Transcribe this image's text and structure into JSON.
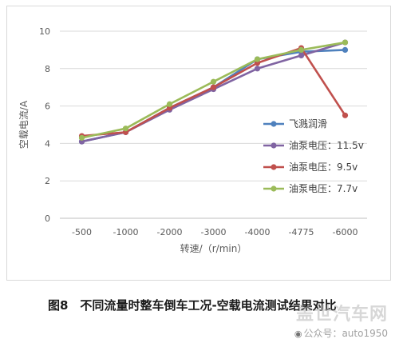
{
  "chart_data": {
    "type": "line",
    "title": "",
    "xlabel": "转速/（r/min）",
    "ylabel": "空载电流/A",
    "categories": [
      "-500",
      "-1000",
      "-2000",
      "-3000",
      "-4000",
      "-4775",
      "-6000"
    ],
    "ylim": [
      0,
      10
    ],
    "yticks": [
      "0",
      "2",
      "4",
      "6",
      "8",
      "10"
    ],
    "grid": "horizontal",
    "legend_position": "right",
    "series": [
      {
        "name": "飞溅润滑",
        "color": "#4f81bd",
        "values": [
          4.1,
          4.6,
          5.9,
          7.0,
          8.5,
          8.9,
          9.0
        ]
      },
      {
        "name": "油泵电压：11.5v",
        "color": "#8064a2",
        "values": [
          4.1,
          4.6,
          5.8,
          6.9,
          8.0,
          8.7,
          9.4
        ]
      },
      {
        "name": "油泵电压：9.5v",
        "color": "#c0504d",
        "values": [
          4.4,
          4.6,
          5.9,
          7.0,
          8.3,
          9.1,
          5.5
        ]
      },
      {
        "name": "油泵电压：7.7v",
        "color": "#9bbb59",
        "values": [
          4.3,
          4.8,
          6.1,
          7.3,
          8.5,
          9.0,
          9.4
        ]
      }
    ]
  },
  "caption": "图8　不同流量时整车倒车工况-空载电流测试结果对比",
  "watermark": {
    "logo_text": "盖世汽车网",
    "account": "公众号：auto1950"
  }
}
